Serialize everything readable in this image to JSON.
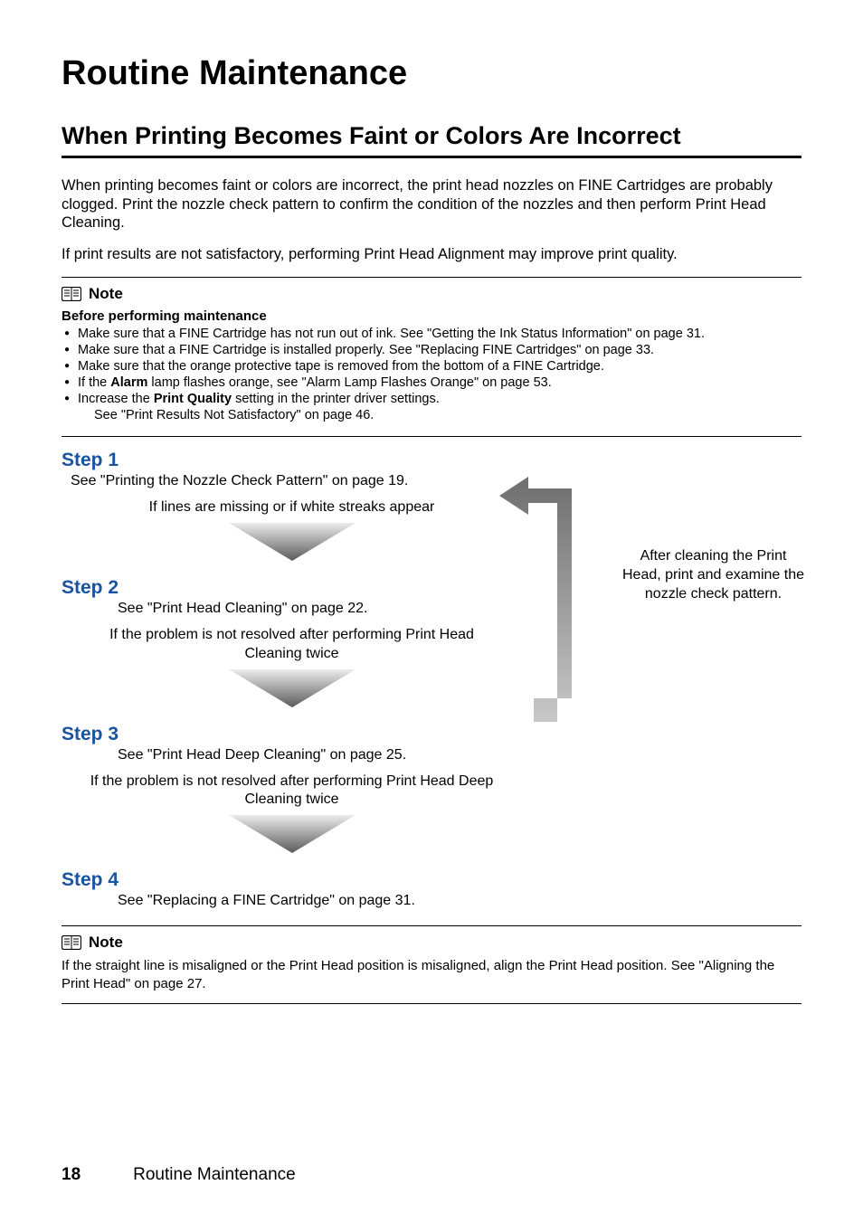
{
  "main_title": "Routine Maintenance",
  "section_title": "When Printing Becomes Faint or Colors Are Incorrect",
  "intro_paras": [
    "When printing becomes faint or colors are incorrect, the print head nozzles on FINE Cartridges are probably clogged. Print the nozzle check pattern to confirm the condition of the nozzles and then perform Print Head Cleaning.",
    "If print results are not satisfactory, performing Print Head Alignment may improve print quality."
  ],
  "note1": {
    "label": "Note",
    "before": "Before performing maintenance",
    "bullets": [
      {
        "text": "Make sure that a FINE Cartridge has not run out of ink. See \"Getting the Ink Status Information\" on page 31."
      },
      {
        "text": "Make sure that a FINE Cartridge is installed properly. See \"Replacing FINE Cartridges\" on page 33."
      },
      {
        "text": "Make sure that the orange protective tape is removed from the bottom of a FINE Cartridge."
      },
      {
        "html": "If the <b>Alarm</b> lamp flashes orange, see \"Alarm Lamp Flashes Orange\" on page 53."
      },
      {
        "html": "Increase the <b>Print Quality</b> setting in the printer driver settings.",
        "sub": "See \"Print Results Not Satisfactory\" on page 46."
      }
    ]
  },
  "steps": {
    "s1": {
      "heading": "Step 1",
      "ref": "See \"Printing the Nozzle Check Pattern\" on page 19.",
      "condition": "If lines are missing or if white streaks appear"
    },
    "s2": {
      "heading": "Step 2",
      "ref": "See \"Print Head Cleaning\" on page 22.",
      "condition": "If the problem is not resolved after performing Print Head Cleaning twice"
    },
    "s3": {
      "heading": "Step 3",
      "ref": "See \"Print Head Deep Cleaning\" on page 25.",
      "condition": "If the problem is not resolved after performing Print Head Deep Cleaning twice"
    },
    "s4": {
      "heading": "Step 4",
      "ref": "See \"Replacing a FINE Cartridge\" on page 31."
    }
  },
  "right_note": "After cleaning the Print Head, print and examine the nozzle check pattern.",
  "note2": {
    "label": "Note",
    "text": "If the straight line is misaligned or the Print Head position is misaligned, align the Print Head position. See \"Aligning the Print Head\" on page 27."
  },
  "footer": {
    "page": "18",
    "text": "Routine Maintenance"
  },
  "colors": {
    "step_heading": "#1a54a1",
    "arrow_fill_light": "#e8e8e8",
    "arrow_fill_dark": "#6a6a6a",
    "return_arrow": "#8a8a8a"
  }
}
